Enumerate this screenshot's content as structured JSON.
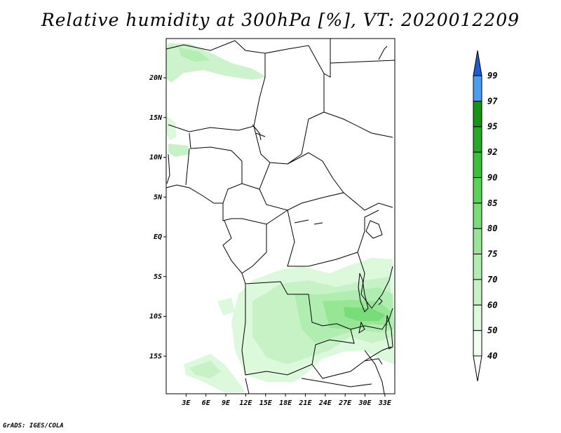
{
  "title": "Relative humidity at 300hPa [%], VT: 2020012209",
  "credit": "GrADS: IGES/COLA",
  "map": {
    "lat_labels": [
      {
        "lat": 20,
        "label": "20N"
      },
      {
        "lat": 15,
        "label": "15N"
      },
      {
        "lat": 10,
        "label": "10N"
      },
      {
        "lat": 5,
        "label": "5N"
      },
      {
        "lat": 0,
        "label": "EQ"
      },
      {
        "lat": -5,
        "label": "5S"
      },
      {
        "lat": -10,
        "label": "10S"
      },
      {
        "lat": -15,
        "label": "15S"
      }
    ],
    "lon_labels": [
      {
        "lon": 3,
        "label": "3E"
      },
      {
        "lon": 6,
        "label": "6E"
      },
      {
        "lon": 9,
        "label": "9E"
      },
      {
        "lon": 12,
        "label": "12E"
      },
      {
        "lon": 15,
        "label": "15E"
      },
      {
        "lon": 18,
        "label": "18E"
      },
      {
        "lon": 21,
        "label": "21E"
      },
      {
        "lon": 24,
        "label": "24E"
      },
      {
        "lon": 27,
        "label": "27E"
      },
      {
        "lon": 30,
        "label": "30E"
      },
      {
        "lon": 33,
        "label": "33E"
      }
    ]
  },
  "colorbar": {
    "levels": [
      {
        "label": "40",
        "color": "#f0fff0"
      },
      {
        "label": "50",
        "color": "#dcf9dc"
      },
      {
        "label": "60",
        "color": "#c6f2c6"
      },
      {
        "label": "70",
        "color": "#b0edb0"
      },
      {
        "label": "75",
        "color": "#96e696"
      },
      {
        "label": "80",
        "color": "#78dc78"
      },
      {
        "label": "85",
        "color": "#5ad25a"
      },
      {
        "label": "90",
        "color": "#3cc03c"
      },
      {
        "label": "92",
        "color": "#24aa24"
      },
      {
        "label": "95",
        "color": "#149614"
      },
      {
        "label": "97",
        "color": "#4a9ef0"
      },
      {
        "label": "99",
        "color": "#2a78e0"
      }
    ],
    "top_color": "#1c5cd0",
    "bottom_color": "#ffffff"
  }
}
